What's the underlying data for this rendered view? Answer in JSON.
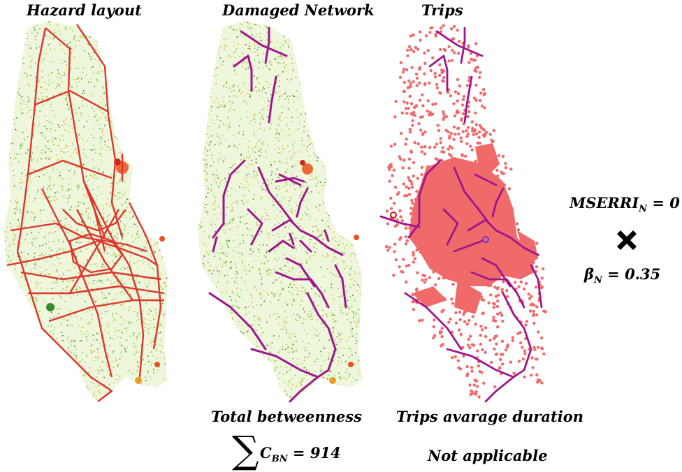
{
  "panels": [
    {
      "id": "hazard",
      "title": "Hazard layout"
    },
    {
      "id": "damaged",
      "title": "Damaged Network"
    },
    {
      "id": "trips",
      "title": "Trips"
    }
  ],
  "metrics": {
    "betweenness_label": "Total betweenness",
    "betweenness_symbol": "C",
    "betweenness_subscript": "BN",
    "betweenness_value": "= 914",
    "duration_label": "Trips avarage duration",
    "duration_value": "Not applicable",
    "mserri_symbol": "MSERRI",
    "mserri_subscript": "N",
    "mserri_value": "= 0",
    "beta_symbol": "β",
    "beta_subscript": "N",
    "beta_value": "= 0.35"
  },
  "colors": {
    "vegetation": "#8cc63f",
    "vegetation_dark": "#3a8a2a",
    "hazard_hot": "#e8501c",
    "road_network": "#e0352b",
    "damaged_network": "#a0158c",
    "trip_points": "#f06a6a",
    "operator": "#000000"
  },
  "icons": {
    "operator": "multiply-icon"
  }
}
